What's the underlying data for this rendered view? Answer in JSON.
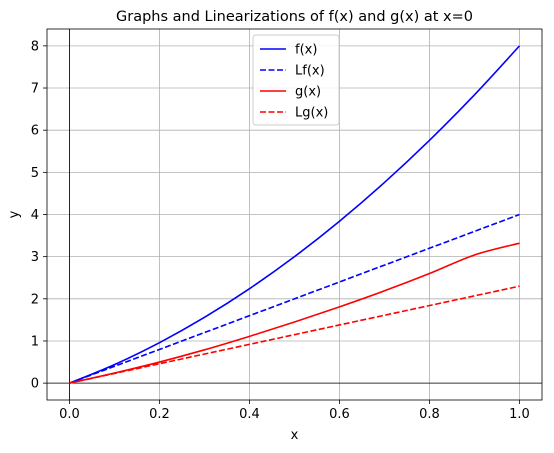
{
  "chart_data": {
    "type": "line",
    "title": "Graphs and Linearizations of f(x) and g(x) at x=0",
    "xlabel": "x",
    "ylabel": "y",
    "xlim": [
      -0.05,
      1.05
    ],
    "ylim": [
      -0.4,
      8.4
    ],
    "xticks": [
      0.0,
      0.2,
      0.4,
      0.6,
      0.8,
      1.0
    ],
    "xtick_labels": [
      "0.0",
      "0.2",
      "0.4",
      "0.6",
      "0.8",
      "1.0"
    ],
    "yticks": [
      0,
      1,
      2,
      3,
      4,
      5,
      6,
      7,
      8
    ],
    "ytick_labels": [
      "0",
      "1",
      "2",
      "3",
      "4",
      "5",
      "6",
      "7",
      "8"
    ],
    "grid": true,
    "reference_lines": {
      "x": 0,
      "y": 0
    },
    "legend_placement": "top-center",
    "series": [
      {
        "name": "f(x)",
        "color": "#0000ff",
        "style": "solid",
        "x": [
          0.0,
          0.1,
          0.2,
          0.3,
          0.4,
          0.5,
          0.6,
          0.7,
          0.8,
          0.9,
          1.0
        ],
        "y": [
          0.0,
          0.44,
          0.96,
          1.56,
          2.24,
          3.0,
          3.84,
          4.76,
          5.76,
          6.84,
          8.0
        ]
      },
      {
        "name": "Lf(x)",
        "color": "#0000ff",
        "style": "dashed",
        "x": [
          0.0,
          1.0
        ],
        "y": [
          0.0,
          4.0
        ]
      },
      {
        "name": "g(x)",
        "color": "#ff0000",
        "style": "solid",
        "x": [
          0.0,
          0.1,
          0.2,
          0.3,
          0.4,
          0.5,
          0.6,
          0.7,
          0.8,
          0.9,
          1.0
        ],
        "y": [
          0.0,
          0.24,
          0.5,
          0.79,
          1.11,
          1.45,
          1.81,
          2.19,
          2.6,
          3.04,
          3.32
        ]
      },
      {
        "name": "Lg(x)",
        "color": "#ff0000",
        "style": "dashed",
        "x": [
          0.0,
          1.0
        ],
        "y": [
          0.0,
          2.3
        ]
      }
    ]
  }
}
